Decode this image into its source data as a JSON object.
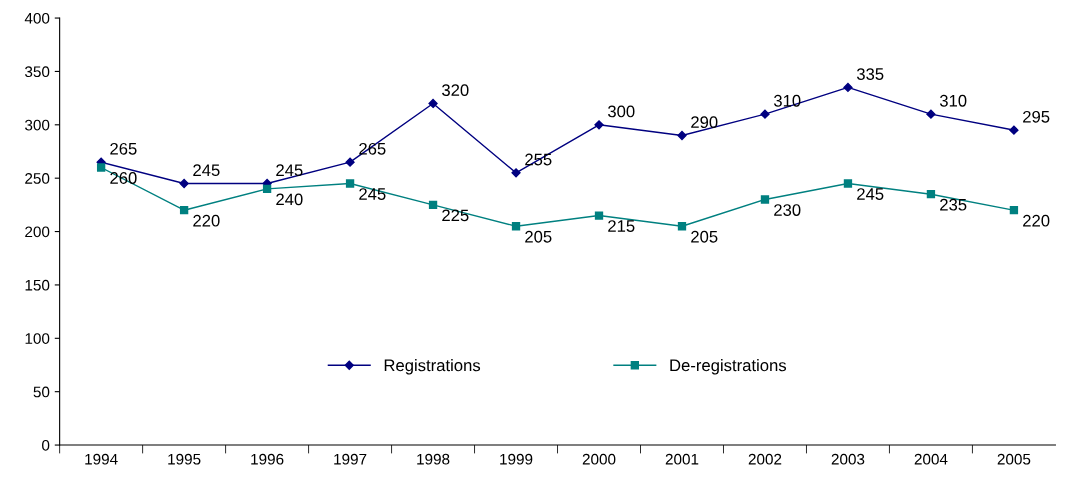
{
  "chart_data": {
    "type": "line",
    "categories": [
      "1994",
      "1995",
      "1996",
      "1997",
      "1998",
      "1999",
      "2000",
      "2001",
      "2002",
      "2003",
      "2004",
      "2005"
    ],
    "series": [
      {
        "name": "Registrations",
        "color": "#000080",
        "marker": "diamond",
        "values": [
          265,
          245,
          245,
          265,
          320,
          255,
          300,
          290,
          310,
          335,
          310,
          295
        ]
      },
      {
        "name": "De-registrations",
        "color": "#008080",
        "marker": "square",
        "values": [
          260,
          220,
          240,
          245,
          225,
          205,
          215,
          205,
          230,
          245,
          235,
          220
        ]
      }
    ],
    "ylim": [
      0,
      400
    ],
    "yticks": [
      0,
      50,
      100,
      150,
      200,
      250,
      300,
      350,
      400
    ],
    "grid": false,
    "legend": "bottom",
    "data_labels": true,
    "line_style": "solid"
  }
}
